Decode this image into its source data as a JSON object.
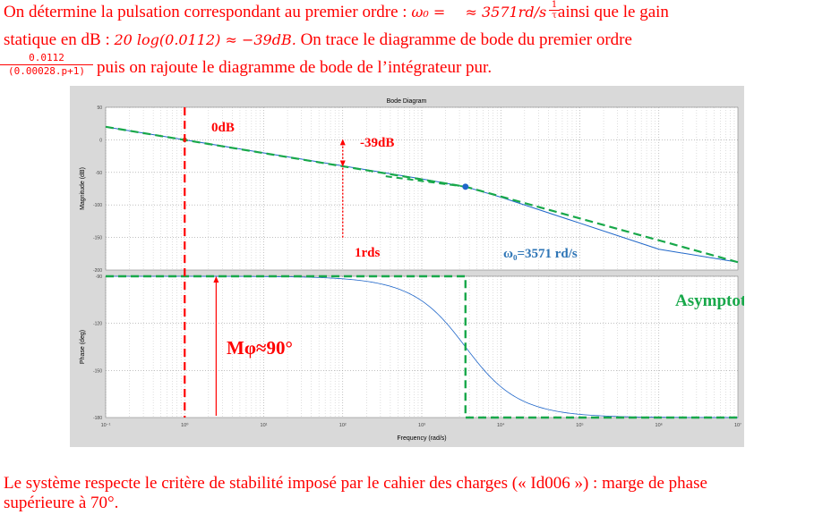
{
  "intro": {
    "line1_a": "On détermine la pulsation correspondant au premier ordre :",
    "line1_omega": "ω₀ = ",
    "line1_frac_num": "1",
    "line1_frac_den": "τ",
    "line1_value": " ≈ 3571rd/s",
    "line1_b": "ainsi que le gain",
    "line2_a": "statique en dB :",
    "line2_math": "20 log(0.0112) ≈ −39dB.",
    "line2_b": "On trace le diagramme de bode du premier ordre",
    "frac_num": "0.0112",
    "frac_den": "(0.00028.p+1)",
    "line3": "puis on rajoute le diagramme de bode de l’intégrateur pur."
  },
  "figure": {
    "title": "Bode Diagram",
    "mag_ylabel": "Magnitude (dB)",
    "phase_ylabel": "Phase (deg)",
    "xlabel": "Frequency (rad/s)",
    "mag_ticks": [
      "50",
      "0",
      "-50",
      "-100",
      "-150",
      "-200"
    ],
    "phase_ticks": [
      "-90",
      "-120",
      "-150",
      "-180"
    ],
    "freq_ticks": [
      "10⁻¹",
      "10⁰",
      "10¹",
      "10²",
      "10³",
      "10⁴",
      "10⁵",
      "10⁶",
      "10⁷"
    ],
    "annotations": {
      "zero_db": "0dB",
      "gain": "-39dB",
      "one_rds": "1rds",
      "omega0": "ω₀=3571 rd/s",
      "asymptotes": "Asymptotes",
      "phase_margin": "Mφ≈90°"
    },
    "colors": {
      "curve": "#1f66c9",
      "asymptote": "#18a84a",
      "annotation": "#ff0000",
      "omega_label": "#2e75b6",
      "asymptote_label": "#18a84a"
    }
  },
  "chart_data": {
    "type": "line",
    "title": "Bode Diagram",
    "xlabel": "Frequency (rad/s)",
    "x_scale": "log",
    "xlim": [
      0.1,
      10000000
    ],
    "magnitude": {
      "ylabel": "Magnitude (dB)",
      "ylim": [
        -200,
        50
      ],
      "points": [
        [
          0.1,
          20
        ],
        [
          1,
          0
        ],
        [
          10,
          -20
        ],
        [
          100,
          -40
        ],
        [
          1000,
          -60
        ],
        [
          3571,
          -72
        ],
        [
          10000,
          -88
        ],
        [
          100000,
          -128
        ],
        [
          1000000,
          -168
        ],
        [
          10000000,
          -188
        ]
      ]
    },
    "phase": {
      "ylabel": "Phase (deg)",
      "ylim": [
        -180,
        -90
      ],
      "points": [
        [
          0.1,
          -90
        ],
        [
          100,
          -90.2
        ],
        [
          1000,
          -96
        ],
        [
          3571,
          -135
        ],
        [
          10000,
          -160
        ],
        [
          100000,
          -178
        ],
        [
          10000000,
          -180
        ]
      ]
    },
    "grid": true
  }
}
